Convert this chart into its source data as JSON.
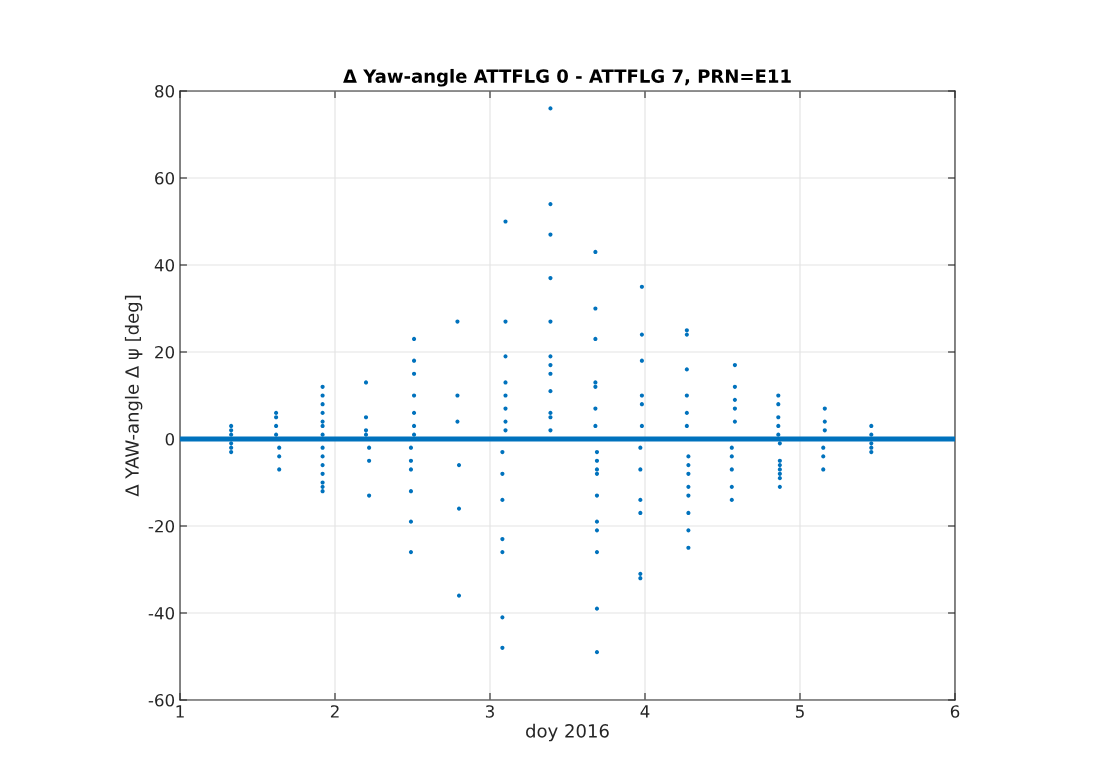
{
  "chart_data": {
    "type": "scatter",
    "title": "Δ Yaw-angle ATTFLG 0 - ATTFLG 7, PRN=E11",
    "xlabel": "doy 2016",
    "ylabel": "Δ YAW-angle Δ ψ [deg]",
    "xlim": [
      1,
      6
    ],
    "ylim": [
      -60,
      80
    ],
    "xticks": [
      1,
      2,
      3,
      4,
      5,
      6
    ],
    "yticks": [
      -60,
      -40,
      -20,
      0,
      20,
      40,
      60,
      80
    ],
    "grid": true,
    "marker": "circle",
    "series": [
      {
        "type": "line",
        "marker": "none",
        "color": "#0072bd",
        "x": [
          1,
          6
        ],
        "values": [
          0,
          0
        ]
      },
      {
        "color": "#0072bd",
        "x": [
          1.33,
          1.33,
          1.33,
          1.33,
          1.33,
          1.33,
          1.62,
          1.62,
          1.62,
          1.62,
          1.64,
          1.64,
          1.64,
          1.92,
          1.92,
          1.92,
          1.92,
          1.92,
          1.92,
          1.92,
          1.92,
          1.92,
          1.92,
          1.92,
          1.92,
          1.92,
          1.92,
          2.2,
          2.2,
          2.2,
          2.2,
          2.22,
          2.22,
          2.22,
          2.51,
          2.51,
          2.51,
          2.51,
          2.51,
          2.51,
          2.51,
          2.49,
          2.49,
          2.49,
          2.49,
          2.49,
          2.49,
          2.79,
          2.79,
          2.79,
          2.8,
          2.8,
          2.8,
          3.1,
          3.1,
          3.1,
          3.1,
          3.1,
          3.1,
          3.1,
          3.1,
          3.08,
          3.08,
          3.08,
          3.08,
          3.08,
          3.08,
          3.08,
          3.39,
          3.39,
          3.39,
          3.39,
          3.39,
          3.39,
          3.39,
          3.39,
          3.39,
          3.39,
          3.39,
          3.39,
          3.68,
          3.68,
          3.68,
          3.68,
          3.68,
          3.68,
          3.68,
          3.69,
          3.69,
          3.69,
          3.69,
          3.69,
          3.69,
          3.69,
          3.69,
          3.69,
          3.69,
          3.98,
          3.98,
          3.98,
          3.98,
          3.98,
          3.98,
          3.97,
          3.97,
          3.97,
          3.97,
          3.97,
          3.97,
          4.27,
          4.27,
          4.27,
          4.27,
          4.27,
          4.27,
          4.28,
          4.28,
          4.28,
          4.28,
          4.28,
          4.28,
          4.28,
          4.28,
          4.58,
          4.58,
          4.58,
          4.58,
          4.58,
          4.56,
          4.56,
          4.56,
          4.56,
          4.56,
          4.86,
          4.86,
          4.86,
          4.86,
          4.86,
          4.87,
          4.87,
          4.87,
          4.87,
          4.87,
          4.87,
          4.87,
          5.16,
          5.16,
          5.16,
          5.15,
          5.15,
          5.15,
          5.46,
          5.46,
          5.46,
          5.46,
          5.46
        ],
        "values": [
          3,
          2,
          1,
          -1,
          -2,
          -3,
          6,
          5,
          3,
          1,
          -2,
          -4,
          -7,
          12,
          10,
          8,
          6,
          4,
          3,
          1,
          -2,
          -4,
          -6,
          -8,
          -10,
          -11,
          -12,
          13,
          5,
          2,
          1,
          -2,
          -5,
          -13,
          23,
          18,
          15,
          10,
          6,
          3,
          1,
          -2,
          -5,
          -7,
          -12,
          -19,
          -26,
          27,
          10,
          4,
          -6,
          -16,
          -36,
          50,
          27,
          19,
          13,
          10,
          7,
          4,
          2,
          -3,
          -8,
          -14,
          -23,
          -26,
          -41,
          -48,
          76,
          54,
          47,
          37,
          27,
          19,
          17,
          15,
          11,
          6,
          5,
          2,
          43,
          30,
          23,
          13,
          12,
          7,
          3,
          -3,
          -5,
          -7,
          -8,
          -13,
          -19,
          -21,
          -26,
          -39,
          -49,
          35,
          24,
          18,
          10,
          8,
          3,
          -2,
          -7,
          -14,
          -17,
          -31,
          -32,
          25,
          24,
          16,
          10,
          6,
          3,
          -4,
          -6,
          -8,
          -11,
          -13,
          -17,
          -21,
          -25,
          17,
          12,
          9,
          7,
          4,
          -2,
          -4,
          -7,
          -11,
          -14,
          10,
          8,
          5,
          3,
          1,
          -1,
          -5,
          -6,
          -7,
          -8,
          -9,
          -11,
          7,
          4,
          2,
          -2,
          -4,
          -7,
          3,
          1,
          -1,
          -2,
          -3
        ]
      }
    ]
  }
}
